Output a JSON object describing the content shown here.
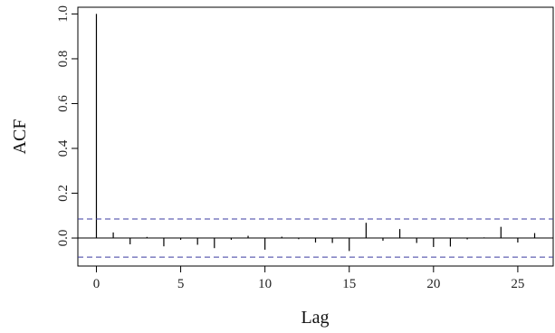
{
  "chart_data": {
    "type": "bar",
    "xlabel": "Lag",
    "ylabel": "ACF",
    "xlim": [
      -1.1,
      27.1
    ],
    "ylim": [
      -0.125,
      1.03
    ],
    "x_ticks": [
      0,
      5,
      10,
      15,
      20,
      25
    ],
    "x_tick_labels": [
      "0",
      "5",
      "10",
      "15",
      "20",
      "25"
    ],
    "y_ticks": [
      0.0,
      0.2,
      0.4,
      0.6,
      0.8,
      1.0
    ],
    "y_tick_labels": [
      "0.0",
      "0.2",
      "0.4",
      "0.6",
      "0.8",
      "1.0"
    ],
    "lags": [
      0,
      1,
      2,
      3,
      4,
      5,
      6,
      7,
      8,
      9,
      10,
      11,
      12,
      13,
      14,
      15,
      16,
      17,
      18,
      19,
      20,
      21,
      22,
      23,
      24,
      25,
      26
    ],
    "acf": [
      1.0,
      0.025,
      -0.028,
      0.005,
      -0.037,
      -0.008,
      -0.03,
      -0.045,
      -0.008,
      0.01,
      -0.052,
      0.006,
      -0.005,
      -0.02,
      -0.022,
      -0.058,
      0.068,
      -0.012,
      0.04,
      -0.022,
      -0.04,
      -0.038,
      -0.006,
      0.003,
      0.05,
      -0.02,
      0.022
    ],
    "confidence_bounds": [
      0.085,
      -0.085
    ],
    "grid": false,
    "bar_color": "#000000",
    "bound_color": "#3b3ba0"
  }
}
